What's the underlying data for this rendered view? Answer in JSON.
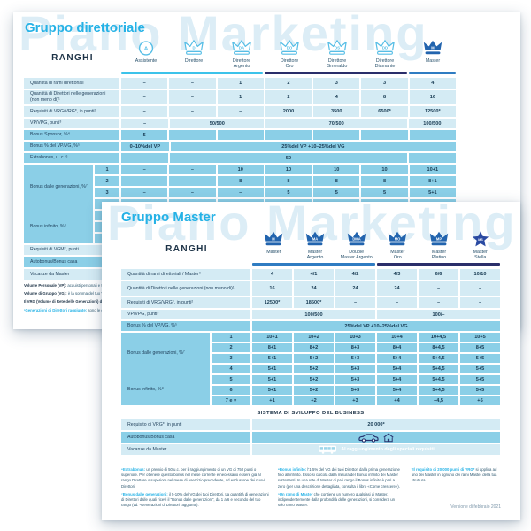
{
  "card1": {
    "title": "Gruppo direttoriale",
    "watermark": "Piano Marketing",
    "ranghi": "RANGHI",
    "columns": [
      {
        "label": "Assistente",
        "badge": "A",
        "icon": "circle"
      },
      {
        "label": "Direttore",
        "badge": "D",
        "icon": "crown"
      },
      {
        "label": "Direttore\nArgento",
        "badge": "DA",
        "icon": "crown"
      },
      {
        "label": "Direttore\nOro",
        "badge": "DO",
        "icon": "crown"
      },
      {
        "label": "Direttore\nSmeraldo",
        "badge": "DS",
        "icon": "crown"
      },
      {
        "label": "Direttore\nDiamante",
        "badge": "DD",
        "icon": "crown"
      },
      {
        "label": "Master",
        "badge": "M",
        "icon": "crownFilled"
      }
    ],
    "bars": [
      {
        "span": 3,
        "color": "#3cc3ea"
      },
      {
        "span": 3,
        "color": "#2a2e6a"
      },
      {
        "span": 1,
        "color": "#2f7cc2"
      }
    ],
    "rows": [
      {
        "label": "Quantità di rami direttoriali",
        "tone": "light",
        "h": 12,
        "cells": [
          "–",
          "–",
          "1",
          "2",
          "3",
          "3",
          "4"
        ]
      },
      {
        "label": "Quantità di Direttori nelle generazioni (non meno di)¹",
        "tone": "light",
        "h": 16,
        "cells": [
          "–",
          "–",
          "1",
          "2",
          "4",
          "8",
          "16"
        ]
      },
      {
        "label": "Requisiti di VRG/VRG*, in punti²",
        "tone": "light",
        "h": 12,
        "cells": [
          "–",
          "–",
          "–",
          "2000",
          "3500",
          "6500*",
          "12500*"
        ]
      },
      {
        "label": "VP/VPG, punti³",
        "tone": "light",
        "h": 11,
        "cells": [
          {
            "t": "–",
            "s": 1
          },
          {
            "t": "50/500",
            "s": 2
          },
          {
            "t": "70/500",
            "s": 3
          },
          {
            "t": "100/500",
            "s": 1
          }
        ]
      },
      {
        "label": "Bonus Sponsor, %⁴",
        "tone": "mid",
        "h": 11,
        "cells": [
          "5",
          "–",
          "–",
          "–",
          "–",
          "–",
          "–"
        ]
      },
      {
        "label": "Bonus % del VP/VG, %⁵",
        "tone": "mid",
        "h": 11,
        "cells": [
          {
            "parts": [
              "0–10%",
              " del VP"
            ],
            "s": 1
          },
          {
            "parts": [
              "25%",
              " del VP + ",
              "10–25%",
              " del VG"
            ],
            "s": 6
          }
        ]
      },
      {
        "label": "Extrabonus, u. c. ⁶",
        "tone": "mid",
        "h": 11,
        "cells": [
          {
            "t": "–",
            "s": 1
          },
          {
            "t": "50",
            "s": 5
          },
          {
            "t": "–",
            "s": 1
          }
        ]
      }
    ],
    "generations": {
      "group_labels": [
        "Bonus dalle generazioni, %⁷",
        "Bonus infinito, %⁸"
      ],
      "rows": [
        {
          "n": "1",
          "v": [
            "–",
            "–",
            "10",
            "10",
            "10",
            "10",
            "10+1"
          ]
        },
        {
          "n": "2",
          "v": [
            "–",
            "–",
            "8",
            "8",
            "8",
            "8",
            "8+1"
          ]
        },
        {
          "n": "3",
          "v": [
            "–",
            "–",
            "–",
            "5",
            "5",
            "5",
            "5+1"
          ]
        },
        {
          "n": "4",
          "v": [
            "–",
            "–",
            "–",
            "–",
            "5",
            "5",
            "5+1"
          ]
        },
        {
          "n": "5",
          "v": [
            "–",
            "–",
            "–",
            "–",
            "–",
            "5",
            "5+1"
          ]
        },
        {
          "n": "6",
          "v": [
            "",
            "",
            "",
            "",
            "",
            "",
            ""
          ]
        },
        {
          "n": "7",
          "v": [
            "",
            "",
            "",
            "",
            "",
            "",
            ""
          ]
        }
      ]
    },
    "bottom_rows": [
      {
        "label": "Requisiti di VGM*, punti",
        "tone": "light",
        "h": 11
      },
      {
        "label": "Autobonus/Bonus casa",
        "tone": "mid",
        "h": 12
      },
      {
        "label": "Vacanze da Master",
        "tone": "light",
        "h": 12
      }
    ],
    "footnotes": [
      {
        "lead": "Volume Personale (VP):",
        "lead_color": "dark",
        "text": "acquisti personali e transazioni, espressi in punti."
      },
      {
        "lead": "Volume di Gruppo (VG):",
        "lead_color": "dark",
        "text": "è la somma del tuo VP e dei VP della tua struttura, espressi in punti e determinato dalla tua struttura."
      },
      {
        "lead": "Il VRG (Volume di Rete delle Generazioni) di Direttore:",
        "lead_color": "dark",
        "text": "è la somma del tuo VG e del VG dei Direttori della tua struttura."
      },
      {
        "lead": "¹Generazioni di Direttori raggiunte:",
        "lead_color": "cyan",
        "text": "sono le generazioni di Direttori dalle quali ricevi il Bonus dalle generazioni."
      }
    ]
  },
  "card2": {
    "title": "Gruppo Master",
    "watermark": "Piano Marketing",
    "ranghi": "RANGHI",
    "columns": [
      {
        "label": "Master",
        "badge": "M",
        "icon": "crownFilled"
      },
      {
        "label": "Master\nArgento",
        "badge": "MA",
        "icon": "crownFilled"
      },
      {
        "label": "Double\nMaster Argento",
        "badge": "DMA",
        "icon": "crownFilled"
      },
      {
        "label": "Master\nOro",
        "badge": "MO",
        "icon": "crownFilled"
      },
      {
        "label": "Master\nPlatino",
        "badge": "MP",
        "icon": "crownFilled"
      },
      {
        "label": "Master\nStella",
        "badge": "MS",
        "icon": "star"
      }
    ],
    "bars": [
      {
        "span": 3,
        "color": "#2f7cc2"
      },
      {
        "span": 3,
        "color": "#2a2e6a"
      }
    ],
    "rows": [
      {
        "label": "Quantità di rami direttoriali / Master⁹",
        "tone": "light",
        "h": 12,
        "cells": [
          "4",
          "4/1",
          "4/2",
          "4/3",
          "6/6",
          "10/10"
        ]
      },
      {
        "label": "Quantità di Direttori nelle generazioni (non meno di)¹",
        "tone": "light",
        "h": 16,
        "cells": [
          "16",
          "24",
          "24",
          "24",
          "–",
          "–"
        ]
      },
      {
        "label": "Requisiti di VRG/VRG*, in punti²",
        "tone": "light",
        "h": 12,
        "cells": [
          "12500*",
          "18500*",
          "–",
          "–",
          "–",
          "–"
        ]
      },
      {
        "label": "VP/VPG, punti³",
        "tone": "light",
        "h": 11,
        "cells": [
          {
            "t": "100/500",
            "s": 3
          },
          {
            "t": "100/–",
            "s": 3
          }
        ]
      },
      {
        "label": "Bonus % del VP/VG, %⁵",
        "tone": "mid",
        "h": 11,
        "cells": [
          {
            "parts": [
              "25%",
              " del VP + ",
              "10–25%",
              " del VG"
            ],
            "s": 6
          }
        ]
      }
    ],
    "generations": {
      "group_labels": [
        "Bonus dalle generazioni, %⁷",
        "Bonus infinito, %⁸"
      ],
      "rows": [
        {
          "n": "1",
          "v": [
            "10+1",
            "10+2",
            "10+3",
            "10+4",
            "10+4,5",
            "10+5"
          ]
        },
        {
          "n": "2",
          "v": [
            "8+1",
            "8+2",
            "8+3",
            "8+4",
            "8+4,5",
            "8+5"
          ]
        },
        {
          "n": "3",
          "v": [
            "5+1",
            "5+2",
            "5+3",
            "5+4",
            "5+4,5",
            "5+5"
          ]
        },
        {
          "n": "4",
          "v": [
            "5+1",
            "5+2",
            "5+3",
            "5+4",
            "5+4,5",
            "5+5"
          ]
        },
        {
          "n": "5",
          "v": [
            "5+1",
            "5+2",
            "5+3",
            "5+4",
            "5+4,5",
            "5+5"
          ]
        },
        {
          "n": "6",
          "v": [
            "5+1",
            "5+2",
            "5+3",
            "5+4",
            "5+4,5",
            "5+5"
          ]
        },
        {
          "n": "7 e =",
          "v": [
            "+1",
            "+2",
            "+3",
            "+4",
            "+4,5",
            "+5"
          ]
        }
      ]
    },
    "sistema_title": "SISTEMA DI SVILUPPO DEL BUSINESS",
    "bottom_rows": [
      {
        "label": "Requisito di VRG*, in punti",
        "tone": "light",
        "h": 12,
        "value": "20 000*"
      },
      {
        "label": "Autobonus/Bonus casa",
        "tone": "mid",
        "h": 12,
        "icons": [
          "car",
          "house"
        ]
      },
      {
        "label": "Vacanze da Master",
        "tone": "light",
        "h": 12,
        "icons": [
          "bus"
        ],
        "note": "Al raggiungimento degli speciali requisiti"
      }
    ],
    "footnote_columns": [
      [
        {
          "lead": "⁶Extrabonus:",
          "lead_color": "cyan",
          "text": "un premio di 50 u.c. per il raggiungimento di un VG di 750 punti o superiore. Per ottenere questo bonus nel mese corrente è necessario essere già al rango Direttore o superiore nel mese di esercizio precedente, ad esclusione dei nuovi Direttori."
        },
        {
          "lead": "⁷Bonus dalle generazioni:",
          "lead_color": "cyan",
          "text": "il 5-10% del VG dei tuoi Direttori. La quantità di generazioni di Direttori dalle quali ricevi il “Bonus dalle generazioni”, da 1 a 6 e secondo del tuo rango (vd. ¹Generazioni di Direttori raggiunte)."
        }
      ],
      [
        {
          "lead": "⁸Bonus infinito:",
          "lead_color": "cyan",
          "text": "l'1-5% del VG dei tuoi Direttori dalla prima generazione fino all'infinito. Esso si calcola dalla misura del Bonus infinito dei Master sottostanti. In una rete di Master di pari rango il Bonus infinito è pari a zero (per una descrizione dettagliata, consulta il libro «Come crescere»)."
        },
        {
          "lead": "⁹Un ramo di Master",
          "lead_color": "cyan",
          "text": "che contiene un numero qualsiasi di Master, indipendentemente dalla profondità delle generazioni, si considera un solo ramo Master."
        }
      ],
      [
        {
          "lead": "*Il requisito di 20 000 punti di VRG*",
          "lead_color": "cyan",
          "text": "si applica ad uno dei Master in ognuno dei rami Master della tua struttura."
        }
      ]
    ],
    "version": "Versione di febbraio 2021"
  }
}
